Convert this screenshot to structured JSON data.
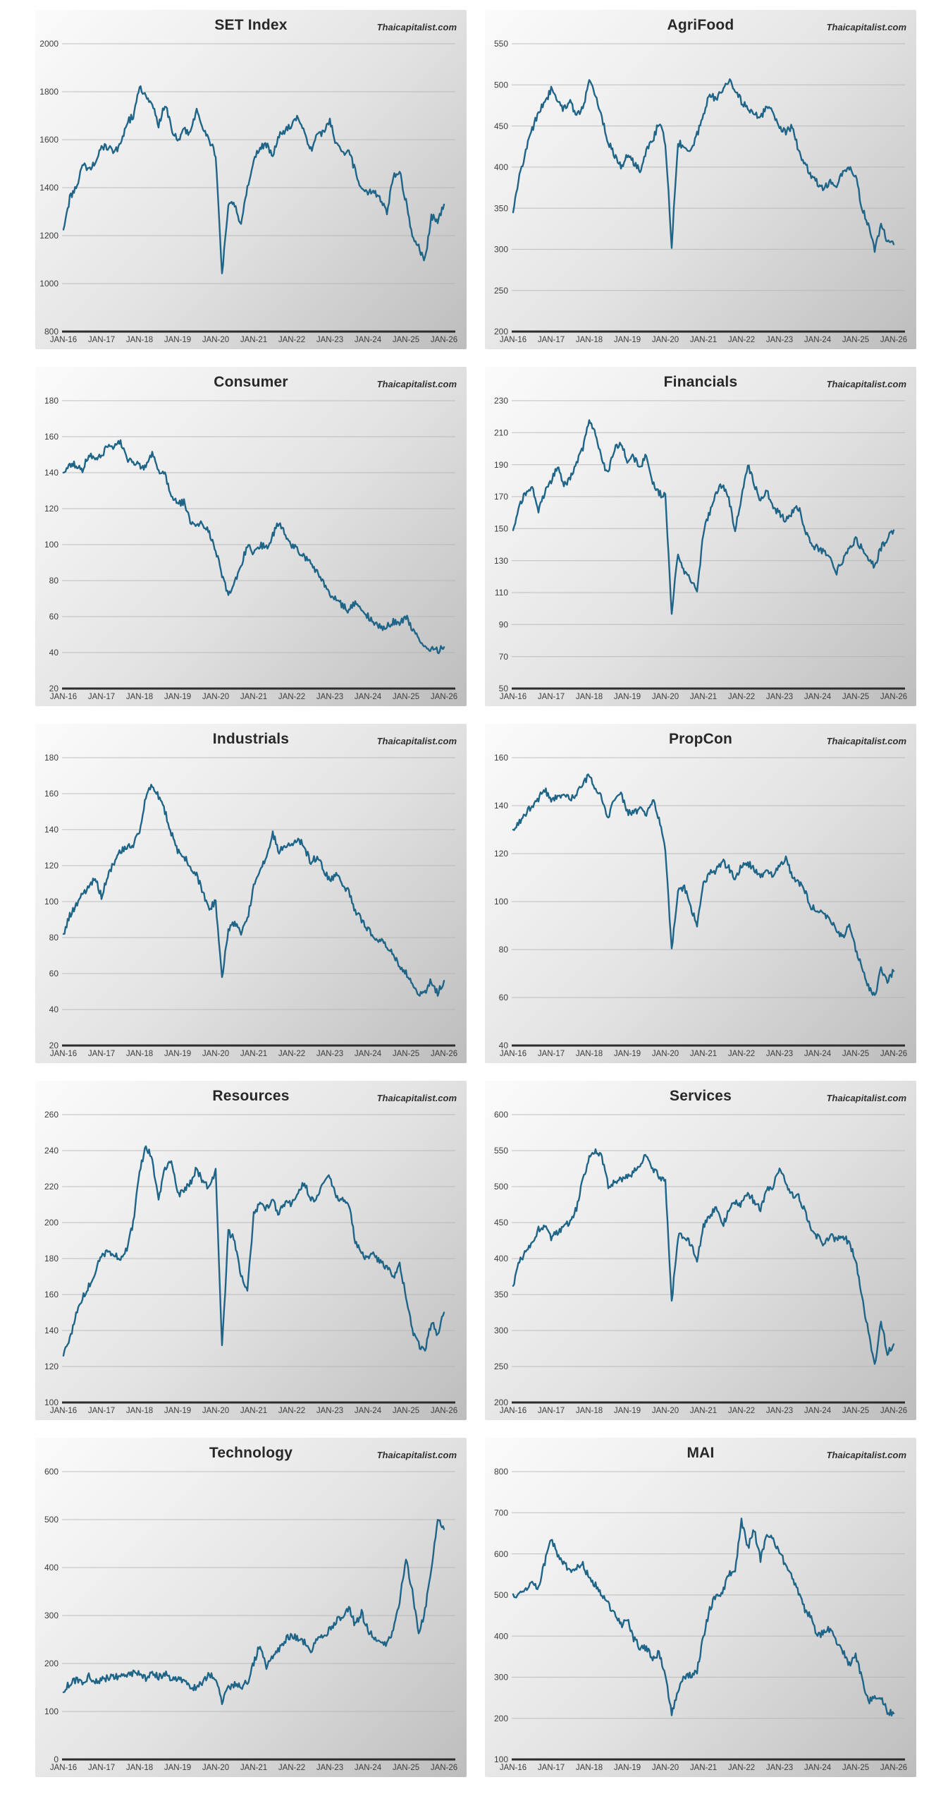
{
  "watermark": "Thaicapitalist.com",
  "line_color": "#1f6588",
  "x_labels": [
    "JAN-16",
    "JAN-17",
    "JAN-18",
    "JAN-19",
    "JAN-20",
    "JAN-21",
    "JAN-22",
    "JAN-23",
    "JAN-24",
    "JAN-25",
    "JAN-26"
  ],
  "chart_data": [
    {
      "type": "line",
      "title": "SET Index",
      "watermark": "Thaicapitalist.com",
      "ylim": [
        800,
        2000
      ],
      "ytick_step": 200,
      "x_tick_labels": [
        "JAN-16",
        "JAN-17",
        "JAN-18",
        "JAN-19",
        "JAN-20",
        "JAN-21",
        "JAN-22",
        "JAN-23",
        "JAN-24",
        "JAN-25",
        "JAN-26"
      ],
      "interval_months": 2,
      "values": [
        1225,
        1355,
        1400,
        1495,
        1480,
        1505,
        1575,
        1565,
        1555,
        1575,
        1670,
        1700,
        1828,
        1780,
        1755,
        1655,
        1750,
        1650,
        1595,
        1640,
        1620,
        1730,
        1655,
        1600,
        1535,
        1040,
        1340,
        1330,
        1240,
        1400,
        1510,
        1570,
        1580,
        1530,
        1615,
        1640,
        1665,
        1690,
        1630,
        1555,
        1620,
        1630,
        1685,
        1580,
        1540,
        1550,
        1470,
        1385,
        1380,
        1378,
        1350,
        1300,
        1445,
        1465,
        1340,
        1190,
        1150,
        1100,
        1280,
        1265,
        1330
      ]
    },
    {
      "type": "line",
      "title": "AgriFood",
      "watermark": "Thaicapitalist.com",
      "ylim": [
        200,
        550
      ],
      "ytick_step": 50,
      "x_tick_labels": [
        "JAN-16",
        "JAN-17",
        "JAN-18",
        "JAN-19",
        "JAN-20",
        "JAN-21",
        "JAN-22",
        "JAN-23",
        "JAN-24",
        "JAN-25",
        "JAN-26"
      ],
      "interval_months": 2,
      "values": [
        345,
        390,
        420,
        445,
        468,
        478,
        495,
        480,
        470,
        478,
        465,
        470,
        505,
        485,
        460,
        430,
        415,
        400,
        415,
        405,
        395,
        420,
        432,
        455,
        430,
        305,
        430,
        425,
        420,
        440,
        462,
        490,
        480,
        495,
        505,
        492,
        480,
        470,
        465,
        460,
        475,
        465,
        450,
        442,
        450,
        420,
        405,
        390,
        380,
        372,
        385,
        375,
        395,
        400,
        390,
        350,
        330,
        300,
        330,
        310,
        306
      ]
    },
    {
      "type": "line",
      "title": "Consumer",
      "watermark": "Thaicapitalist.com",
      "ylim": [
        20,
        180
      ],
      "ytick_step": 20,
      "x_tick_labels": [
        "JAN-16",
        "JAN-17",
        "JAN-18",
        "JAN-19",
        "JAN-20",
        "JAN-21",
        "JAN-22",
        "JAN-23",
        "JAN-24",
        "JAN-25",
        "JAN-26"
      ],
      "interval_months": 2,
      "values": [
        140,
        145,
        144,
        142,
        150,
        148,
        150,
        155,
        154,
        157,
        147,
        146,
        144,
        143,
        150,
        141,
        139,
        128,
        122,
        124,
        113,
        110,
        112,
        106,
        97,
        83,
        72,
        80,
        88,
        100,
        95,
        100,
        98,
        105,
        113,
        105,
        100,
        97,
        93,
        90,
        84,
        78,
        72,
        70,
        66,
        63,
        68,
        63,
        60,
        57,
        54,
        55,
        57,
        56,
        60,
        53,
        48,
        44,
        42,
        41,
        43
      ]
    },
    {
      "type": "line",
      "title": "Financials",
      "watermark": "Thaicapitalist.com",
      "ylim": [
        50,
        230
      ],
      "ytick_step": 20,
      "x_tick_labels": [
        "JAN-16",
        "JAN-17",
        "JAN-18",
        "JAN-19",
        "JAN-20",
        "JAN-21",
        "JAN-22",
        "JAN-23",
        "JAN-24",
        "JAN-25",
        "JAN-26"
      ],
      "interval_months": 2,
      "values": [
        149,
        165,
        172,
        175,
        162,
        172,
        180,
        188,
        177,
        182,
        192,
        200,
        218,
        208,
        192,
        185,
        200,
        204,
        192,
        195,
        188,
        197,
        180,
        172,
        170,
        98,
        135,
        122,
        118,
        110,
        148,
        160,
        172,
        178,
        168,
        149,
        170,
        190,
        178,
        168,
        175,
        162,
        160,
        155,
        160,
        163,
        150,
        140,
        138,
        135,
        132,
        123,
        130,
        138,
        143,
        138,
        130,
        127,
        138,
        144,
        149
      ]
    },
    {
      "type": "line",
      "title": "Industrials",
      "watermark": "Thaicapitalist.com",
      "ylim": [
        20,
        180
      ],
      "ytick_step": 20,
      "x_tick_labels": [
        "JAN-16",
        "JAN-17",
        "JAN-18",
        "JAN-19",
        "JAN-20",
        "JAN-21",
        "JAN-22",
        "JAN-23",
        "JAN-24",
        "JAN-25",
        "JAN-26"
      ],
      "interval_months": 2,
      "values": [
        82,
        92,
        98,
        104,
        108,
        113,
        103,
        115,
        122,
        128,
        130,
        132,
        140,
        158,
        165,
        158,
        150,
        138,
        128,
        125,
        120,
        115,
        105,
        96,
        100,
        57,
        85,
        88,
        82,
        90,
        108,
        118,
        125,
        138,
        128,
        130,
        132,
        135,
        130,
        122,
        125,
        118,
        112,
        115,
        110,
        105,
        95,
        90,
        85,
        80,
        78,
        76,
        70,
        65,
        60,
        55,
        48,
        50,
        56,
        49,
        56
      ]
    },
    {
      "type": "line",
      "title": "PropCon",
      "watermark": "Thaicapitalist.com",
      "ylim": [
        40,
        160
      ],
      "ytick_step": 20,
      "x_tick_labels": [
        "JAN-16",
        "JAN-17",
        "JAN-18",
        "JAN-19",
        "JAN-20",
        "JAN-21",
        "JAN-22",
        "JAN-23",
        "JAN-24",
        "JAN-25",
        "JAN-26"
      ],
      "interval_months": 2,
      "values": [
        130,
        133,
        137,
        140,
        143,
        147,
        141,
        144,
        145,
        143,
        145,
        150,
        152,
        147,
        143,
        135,
        143,
        145,
        137,
        137,
        139,
        136,
        143,
        134,
        122,
        80,
        104,
        106,
        98,
        90,
        107,
        112,
        113,
        117,
        114,
        110,
        115,
        116,
        114,
        110,
        113,
        110,
        116,
        118,
        110,
        108,
        104,
        98,
        96,
        94,
        92,
        88,
        85,
        90,
        80,
        72,
        65,
        60,
        72,
        67,
        71
      ]
    },
    {
      "type": "line",
      "title": "Resources",
      "watermark": "Thaicapitalist.com",
      "ylim": [
        100,
        260
      ],
      "ytick_step": 20,
      "x_tick_labels": [
        "JAN-16",
        "JAN-17",
        "JAN-18",
        "JAN-19",
        "JAN-20",
        "JAN-21",
        "JAN-22",
        "JAN-23",
        "JAN-24",
        "JAN-25",
        "JAN-26"
      ],
      "interval_months": 2,
      "values": [
        126,
        135,
        150,
        158,
        165,
        172,
        182,
        184,
        183,
        180,
        185,
        200,
        228,
        243,
        235,
        212,
        230,
        235,
        215,
        218,
        222,
        230,
        222,
        220,
        228,
        130,
        195,
        190,
        170,
        162,
        205,
        210,
        208,
        212,
        205,
        212,
        210,
        218,
        222,
        212,
        215,
        222,
        225,
        215,
        212,
        210,
        190,
        182,
        180,
        182,
        178,
        175,
        170,
        176,
        160,
        140,
        132,
        128,
        145,
        138,
        150
      ]
    },
    {
      "type": "line",
      "title": "Services",
      "watermark": "Thaicapitalist.com",
      "ylim": [
        200,
        600
      ],
      "ytick_step": 50,
      "x_tick_labels": [
        "JAN-16",
        "JAN-17",
        "JAN-18",
        "JAN-19",
        "JAN-20",
        "JAN-21",
        "JAN-22",
        "JAN-23",
        "JAN-24",
        "JAN-25",
        "JAN-26"
      ],
      "interval_months": 2,
      "values": [
        362,
        395,
        410,
        420,
        440,
        445,
        430,
        435,
        445,
        450,
        470,
        510,
        540,
        552,
        540,
        500,
        505,
        510,
        515,
        520,
        530,
        545,
        525,
        515,
        505,
        340,
        430,
        432,
        420,
        395,
        445,
        460,
        470,
        445,
        465,
        480,
        475,
        490,
        480,
        470,
        495,
        500,
        528,
        505,
        490,
        485,
        465,
        440,
        430,
        420,
        433,
        425,
        433,
        420,
        400,
        345,
        300,
        252,
        312,
        270,
        281
      ]
    },
    {
      "type": "line",
      "title": "Technology",
      "watermark": "Thaicapitalist.com",
      "ylim": [
        0,
        600
      ],
      "ytick_step": 100,
      "x_tick_labels": [
        "JAN-16",
        "JAN-17",
        "JAN-18",
        "JAN-19",
        "JAN-20",
        "JAN-21",
        "JAN-22",
        "JAN-23",
        "JAN-24",
        "JAN-25",
        "JAN-26"
      ],
      "interval_months": 2,
      "values": [
        140,
        160,
        165,
        158,
        175,
        160,
        165,
        170,
        172,
        175,
        178,
        180,
        182,
        170,
        178,
        172,
        180,
        170,
        165,
        168,
        150,
        152,
        162,
        178,
        168,
        122,
        150,
        155,
        152,
        160,
        200,
        240,
        195,
        215,
        230,
        250,
        260,
        250,
        245,
        225,
        250,
        255,
        270,
        290,
        300,
        315,
        280,
        305,
        270,
        255,
        245,
        240,
        270,
        330,
        420,
        350,
        260,
        310,
        395,
        505,
        480
      ]
    },
    {
      "type": "line",
      "title": "MAI",
      "watermark": "Thaicapitalist.com",
      "ylim": [
        100,
        800
      ],
      "ytick_step": 100,
      "x_tick_labels": [
        "JAN-16",
        "JAN-17",
        "JAN-18",
        "JAN-19",
        "JAN-20",
        "JAN-21",
        "JAN-22",
        "JAN-23",
        "JAN-24",
        "JAN-25",
        "JAN-26"
      ],
      "interval_months": 2,
      "values": [
        502,
        500,
        515,
        528,
        515,
        580,
        640,
        595,
        575,
        560,
        565,
        575,
        540,
        525,
        498,
        478,
        455,
        425,
        445,
        395,
        372,
        372,
        345,
        360,
        305,
        212,
        270,
        300,
        305,
        315,
        400,
        465,
        500,
        505,
        550,
        560,
        680,
        615,
        660,
        585,
        650,
        635,
        605,
        570,
        545,
        505,
        465,
        445,
        400,
        408,
        418,
        385,
        362,
        330,
        350,
        300,
        240,
        250,
        255,
        218,
        212
      ]
    }
  ]
}
